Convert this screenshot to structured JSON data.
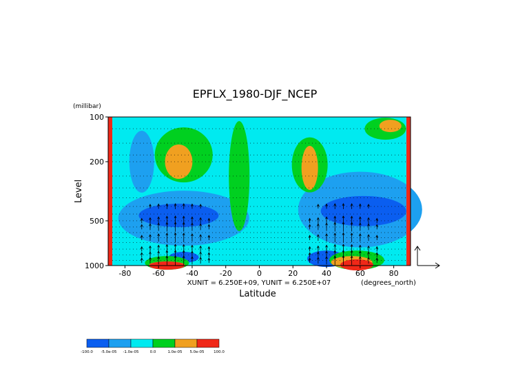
{
  "chart_data": {
    "type": "heatmap",
    "title": "EPFLX_1980-DJF_NCEP",
    "xlabel": "Latitude",
    "ylabel": "Level",
    "y_unit": "(millibar)",
    "x_unit": "(degrees_north)",
    "unit_note": "XUNIT = 6.250E+09, YUNIT = 6.250E+07",
    "x_ticks": [
      "-80",
      "-60",
      "-40",
      "-20",
      "0",
      "20",
      "40",
      "60",
      "80"
    ],
    "x_tick_values": [
      -80,
      -60,
      -40,
      -20,
      0,
      20,
      40,
      60,
      80
    ],
    "y_ticks": [
      "100",
      "200",
      "500",
      "1000"
    ],
    "y_tick_values": [
      100,
      200,
      500,
      1000
    ],
    "xlim": [
      -90,
      90
    ],
    "ylim": [
      1000,
      100
    ],
    "y_scale": "log",
    "overlay": "vector arrows (EP flux)",
    "legend": {
      "labels": [
        "-100.0",
        "-5.0e-05",
        "-1.0e-05",
        "0.0",
        "1.0e-05",
        "5.0e-05",
        "100.0"
      ],
      "colors": [
        "#0a5ef0",
        "#1da0f0",
        "#00eaf0",
        "#00d020",
        "#f0a020",
        "#f02818"
      ]
    },
    "levels": [
      -100.0,
      -5e-05,
      -1e-05,
      0.0,
      1e-05,
      5e-05,
      100.0
    ]
  }
}
